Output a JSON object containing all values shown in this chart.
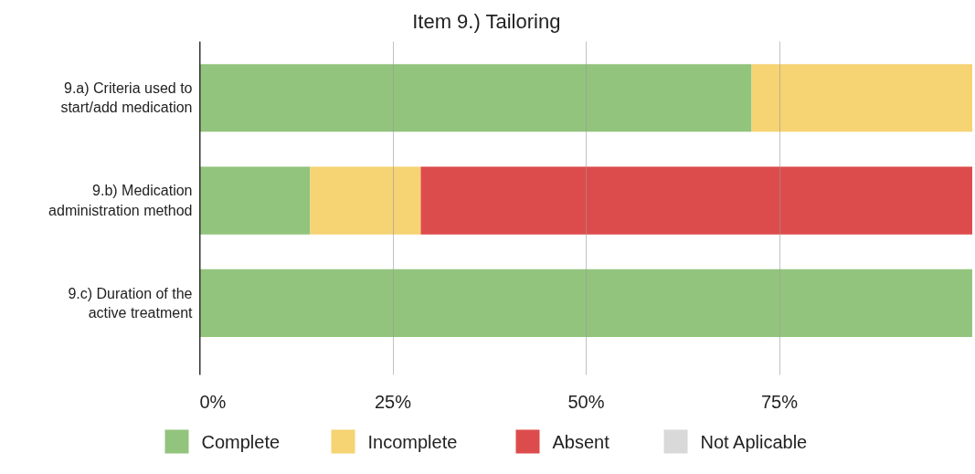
{
  "chart_data": {
    "type": "bar",
    "orientation": "horizontal",
    "stacked": true,
    "title": "Item 9.) Tailoring",
    "categories": [
      "9.a) Criteria used to\nstart/add medication",
      "9.b) Medication\nadministration method",
      "9.c) Duration of the\nactive treatment"
    ],
    "series": [
      {
        "name": "Complete",
        "color": "#93c47d",
        "values": [
          71.4,
          14.3,
          100
        ]
      },
      {
        "name": "Incomplete",
        "color": "#f6d373",
        "values": [
          28.6,
          14.3,
          0
        ]
      },
      {
        "name": "Absent",
        "color": "#dd4c4c",
        "values": [
          0,
          71.4,
          0
        ]
      },
      {
        "name": "Not Aplicable",
        "color": "#d9d9d9",
        "values": [
          0,
          0,
          0
        ]
      }
    ],
    "xlim": [
      0,
      100
    ],
    "xticks": [
      {
        "value": 0,
        "label": "0%"
      },
      {
        "value": 25,
        "label": "25%"
      },
      {
        "value": 50,
        "label": "50%"
      },
      {
        "value": 75,
        "label": "75%"
      }
    ],
    "grid": "x",
    "legend": "bottom"
  }
}
